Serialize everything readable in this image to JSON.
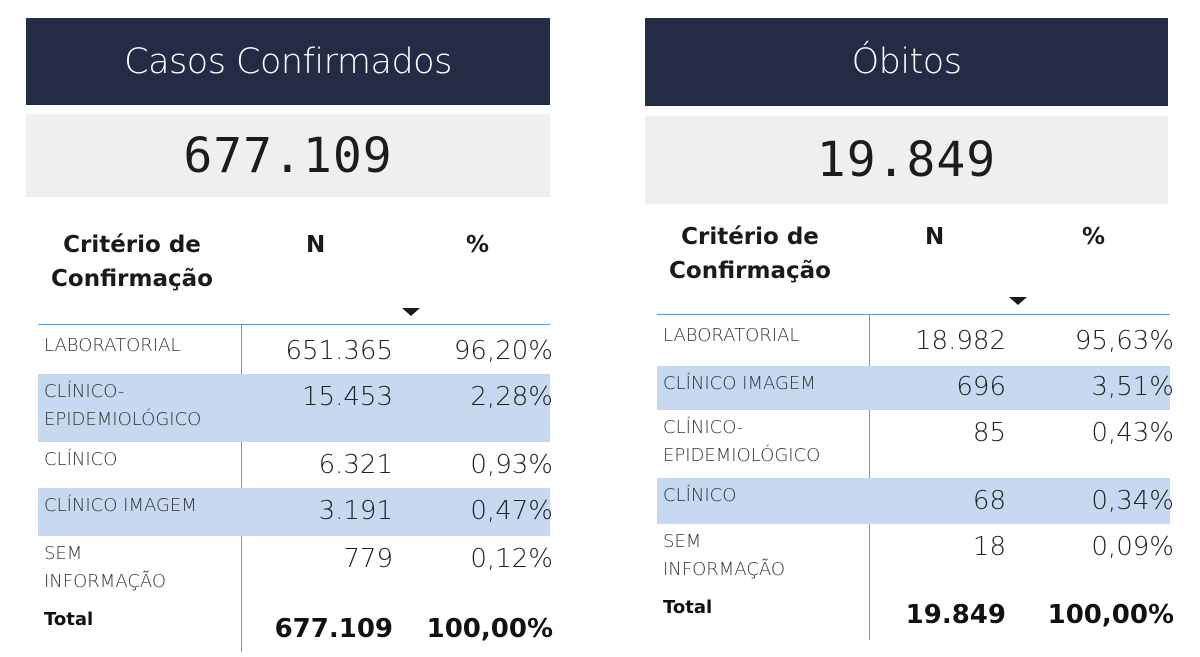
{
  "left_panel": {
    "title": "Casos Confirmados",
    "kpi": "677.109",
    "header": {
      "criterio": "Critério de Confirmação",
      "n": "N",
      "pct": "%"
    },
    "rows": [
      {
        "label": "LABORATORIAL",
        "n": "651.365",
        "pct": "96,20%",
        "highlight": false
      },
      {
        "label": "CLÍNICO-\nEPIDEMIOLÓGICO",
        "n": "15.453",
        "pct": "2,28%",
        "highlight": true
      },
      {
        "label": "CLÍNICO",
        "n": "6.321",
        "pct": "0,93%",
        "highlight": false
      },
      {
        "label": "CLÍNICO IMAGEM",
        "n": "3.191",
        "pct": "0,47%",
        "highlight": true
      },
      {
        "label": "SEM\nINFORMAÇÃO",
        "n": "779",
        "pct": "0,12%",
        "highlight": false
      }
    ],
    "total": {
      "label": "Total",
      "n": "677.109",
      "pct": "100,00%"
    }
  },
  "right_panel": {
    "title": "Óbitos",
    "kpi": "19.849",
    "header": {
      "criterio": "Critério de Confirmação",
      "n": "N",
      "pct": "%"
    },
    "rows": [
      {
        "label": "LABORATORIAL",
        "n": "18.982",
        "pct": "95,63%",
        "highlight": false
      },
      {
        "label": "CLÍNICO IMAGEM",
        "n": "696",
        "pct": "3,51%",
        "highlight": true
      },
      {
        "label": "CLÍNICO-\nEPIDEMIOLÓGICO",
        "n": "85",
        "pct": "0,43%",
        "highlight": false
      },
      {
        "label": "CLÍNICO",
        "n": "68",
        "pct": "0,34%",
        "highlight": true
      },
      {
        "label": "SEM\nINFORMAÇÃO",
        "n": "18",
        "pct": "0,09%",
        "highlight": false
      }
    ],
    "total": {
      "label": "Total",
      "n": "19.849",
      "pct": "100,00%"
    }
  },
  "colors": {
    "title_bg": "#242c45",
    "kpi_bg": "#efefef",
    "highlight_row": "#c6d9f1",
    "grid_line": "#5b9bd5"
  },
  "icons": {
    "sort": "sort-descending-icon"
  }
}
